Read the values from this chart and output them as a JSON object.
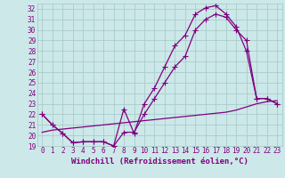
{
  "background_color": "#cce8e8",
  "grid_color": "#aacccc",
  "line_color": "#800080",
  "xlim": [
    -0.5,
    23.5
  ],
  "ylim": [
    19,
    32.5
  ],
  "yticks": [
    19,
    20,
    21,
    22,
    23,
    24,
    25,
    26,
    27,
    28,
    29,
    30,
    31,
    32
  ],
  "xticks": [
    0,
    1,
    2,
    3,
    4,
    5,
    6,
    7,
    8,
    9,
    10,
    11,
    12,
    13,
    14,
    15,
    16,
    17,
    18,
    19,
    20,
    21,
    22,
    23
  ],
  "xlabel": "Windchill (Refroidissement éolien,°C)",
  "line1_x": [
    0,
    1,
    2,
    3,
    4,
    5,
    6,
    7,
    8,
    9,
    10,
    11,
    12,
    13,
    14,
    15,
    16,
    17,
    18,
    19,
    20,
    21,
    22,
    23
  ],
  "line1_y": [
    22.0,
    21.0,
    20.2,
    19.3,
    19.4,
    19.4,
    19.4,
    19.0,
    22.5,
    20.2,
    23.0,
    24.5,
    26.5,
    28.5,
    29.5,
    31.5,
    32.1,
    32.3,
    31.5,
    30.3,
    28.0,
    23.5,
    23.5,
    23.0
  ],
  "line2_x": [
    0,
    1,
    2,
    3,
    4,
    5,
    6,
    7,
    8,
    9,
    10,
    11,
    12,
    13,
    14,
    15,
    16,
    17,
    18,
    19,
    20,
    21,
    22,
    23
  ],
  "line2_y": [
    22.0,
    21.0,
    20.2,
    19.3,
    19.4,
    19.4,
    19.4,
    19.0,
    20.3,
    20.3,
    22.0,
    23.5,
    25.0,
    26.5,
    27.5,
    30.0,
    31.0,
    31.5,
    31.2,
    30.0,
    29.0,
    23.5,
    23.5,
    23.0
  ],
  "line3_x": [
    0,
    1,
    2,
    3,
    4,
    5,
    6,
    7,
    8,
    9,
    10,
    11,
    12,
    13,
    14,
    15,
    16,
    17,
    18,
    19,
    20,
    21,
    22,
    23
  ],
  "line3_y": [
    20.3,
    20.5,
    20.6,
    20.7,
    20.8,
    20.9,
    21.0,
    21.1,
    21.2,
    21.3,
    21.4,
    21.5,
    21.6,
    21.7,
    21.8,
    21.9,
    22.0,
    22.1,
    22.2,
    22.4,
    22.7,
    23.0,
    23.2,
    23.3
  ],
  "marker": "+",
  "markersize": 4,
  "linewidth": 0.9,
  "tick_fontsize": 5.5,
  "xlabel_fontsize": 6.5
}
